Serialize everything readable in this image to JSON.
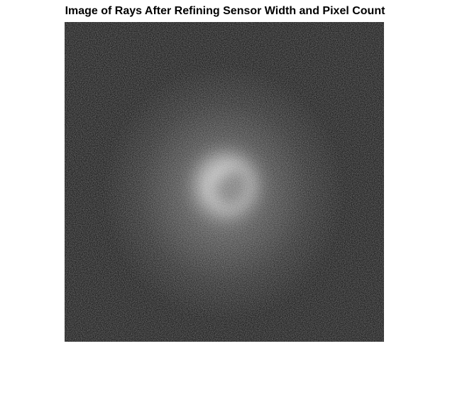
{
  "figure": {
    "title": "Image of Rays After Refining Sensor Width and Pixel Count",
    "colormap": "gray",
    "background_color": "#ffffff",
    "image_background_color": "#000000"
  }
}
